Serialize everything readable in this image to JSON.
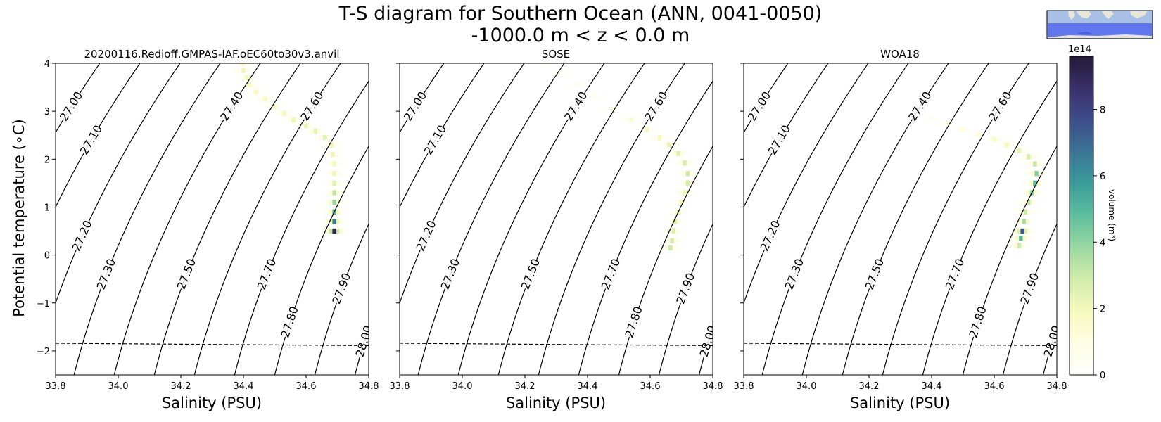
{
  "figure": {
    "title_line1": "T-S diagram for Southern Ocean (ANN, 0041-0050)",
    "title_line2": "-1000.0 m < z < 0.0 m",
    "xlabel": "Salinity (PSU)",
    "ylabel": "Potential temperature (∘C)",
    "colorbar_label": "volume (m³)",
    "colorbar_scale": "1e14",
    "colorbar_ticks": [
      0,
      2,
      4,
      6,
      8
    ],
    "colorbar_max": 9.6,
    "colormap": [
      "#ffffff",
      "#fdfde3",
      "#f6f9bd",
      "#d3edaa",
      "#9ad8a2",
      "#5ebe9e",
      "#3b9c9a",
      "#3b7596",
      "#3e4d8a",
      "#392f6a",
      "#241a36"
    ],
    "inset_map": "region-inset-map"
  },
  "chart_data": [
    {
      "type": "heatmap",
      "title": "20200116.Redioff.GMPAS-IAF.oEC60to30v3.anvil",
      "xlabel": "Salinity (PSU)",
      "ylabel": "Potential temperature (∘C)",
      "xlim": [
        33.8,
        34.8
      ],
      "ylim": [
        -2.5,
        4
      ],
      "xticks": [
        33.8,
        34.0,
        34.2,
        34.4,
        34.6,
        34.8
      ],
      "yticks": [
        -2,
        -1,
        0,
        1,
        2,
        3,
        4
      ],
      "density_contours": [
        27.0,
        27.1,
        27.2,
        27.3,
        27.4,
        27.5,
        27.6,
        27.7,
        27.8,
        27.9,
        28.0
      ],
      "freezing_line": [
        [
          33.8,
          -1.84
        ],
        [
          34.8,
          -1.89
        ]
      ],
      "track": [
        [
          34.4,
          4.0,
          2.0
        ],
        [
          34.4,
          3.85,
          2.2
        ],
        [
          34.41,
          3.7,
          2.0
        ],
        [
          34.42,
          3.55,
          1.8
        ],
        [
          34.44,
          3.4,
          1.7
        ],
        [
          34.47,
          3.25,
          1.8
        ],
        [
          34.5,
          3.1,
          1.8
        ],
        [
          34.53,
          2.95,
          2.0
        ],
        [
          34.56,
          2.82,
          2.2
        ],
        [
          34.6,
          2.7,
          2.3
        ],
        [
          34.63,
          2.58,
          2.4
        ],
        [
          34.66,
          2.45,
          2.5
        ],
        [
          34.68,
          2.3,
          2.4
        ],
        [
          34.685,
          2.1,
          2.2
        ],
        [
          34.69,
          1.9,
          2.0
        ],
        [
          34.69,
          1.7,
          2.2
        ],
        [
          34.69,
          1.5,
          2.6
        ],
        [
          34.69,
          1.3,
          3.2
        ],
        [
          34.69,
          1.1,
          4.0
        ],
        [
          34.69,
          0.9,
          5.0
        ],
        [
          34.69,
          0.7,
          6.5
        ],
        [
          34.69,
          0.5,
          9.0
        ]
      ]
    },
    {
      "type": "heatmap",
      "title": "SOSE",
      "xlabel": "Salinity (PSU)",
      "xlim": [
        33.8,
        34.8
      ],
      "ylim": [
        -2.5,
        4
      ],
      "xticks": [
        33.8,
        34.0,
        34.2,
        34.4,
        34.6,
        34.8
      ],
      "density_contours": [
        27.0,
        27.1,
        27.2,
        27.3,
        27.4,
        27.5,
        27.6,
        27.7,
        27.8,
        27.9,
        28.0
      ],
      "freezing_line": [
        [
          33.8,
          -1.84
        ],
        [
          34.8,
          -1.89
        ]
      ],
      "track": [
        [
          34.27,
          4.0,
          0.4
        ],
        [
          34.32,
          3.8,
          0.4
        ],
        [
          34.37,
          3.55,
          0.5
        ],
        [
          34.42,
          3.3,
          0.6
        ],
        [
          34.48,
          3.05,
          0.9
        ],
        [
          34.54,
          2.82,
          1.3
        ],
        [
          34.59,
          2.62,
          1.7
        ],
        [
          34.63,
          2.45,
          2.0
        ],
        [
          34.66,
          2.3,
          2.3
        ],
        [
          34.69,
          2.12,
          2.6
        ],
        [
          34.71,
          1.92,
          2.8
        ],
        [
          34.72,
          1.7,
          3.0
        ],
        [
          34.72,
          1.5,
          2.8
        ],
        [
          34.71,
          1.3,
          2.4
        ],
        [
          34.7,
          1.1,
          2.1
        ],
        [
          34.69,
          0.9,
          2.2
        ],
        [
          34.68,
          0.7,
          2.6
        ],
        [
          34.675,
          0.5,
          2.8
        ],
        [
          34.67,
          0.3,
          3.0
        ],
        [
          34.665,
          0.15,
          3.0
        ]
      ]
    },
    {
      "type": "heatmap",
      "title": "WOA18",
      "xlabel": "Salinity (PSU)",
      "xlim": [
        33.8,
        34.8
      ],
      "ylim": [
        -2.5,
        4
      ],
      "xticks": [
        33.8,
        34.0,
        34.2,
        34.4,
        34.6,
        34.8
      ],
      "density_contours": [
        27.0,
        27.1,
        27.2,
        27.3,
        27.4,
        27.5,
        27.6,
        27.7,
        27.8,
        27.9,
        28.0
      ],
      "freezing_line": [
        [
          33.8,
          -1.84
        ],
        [
          34.8,
          -1.89
        ]
      ],
      "track": [
        [
          34.4,
          2.85,
          0.6
        ],
        [
          34.45,
          2.75,
          0.8
        ],
        [
          34.5,
          2.62,
          1.0
        ],
        [
          34.55,
          2.52,
          1.3
        ],
        [
          34.6,
          2.42,
          1.7
        ],
        [
          34.64,
          2.3,
          2.0
        ],
        [
          34.68,
          2.18,
          2.4
        ],
        [
          34.71,
          2.05,
          2.8
        ],
        [
          34.73,
          1.9,
          3.2
        ],
        [
          34.735,
          1.7,
          4.2
        ],
        [
          34.73,
          1.5,
          4.8
        ],
        [
          34.72,
          1.3,
          4.0
        ],
        [
          34.71,
          1.1,
          3.2
        ],
        [
          34.7,
          0.9,
          3.0
        ],
        [
          34.695,
          0.7,
          3.6
        ],
        [
          34.69,
          0.5,
          7.5
        ],
        [
          34.685,
          0.35,
          5.0
        ],
        [
          34.68,
          0.2,
          3.0
        ]
      ]
    }
  ]
}
